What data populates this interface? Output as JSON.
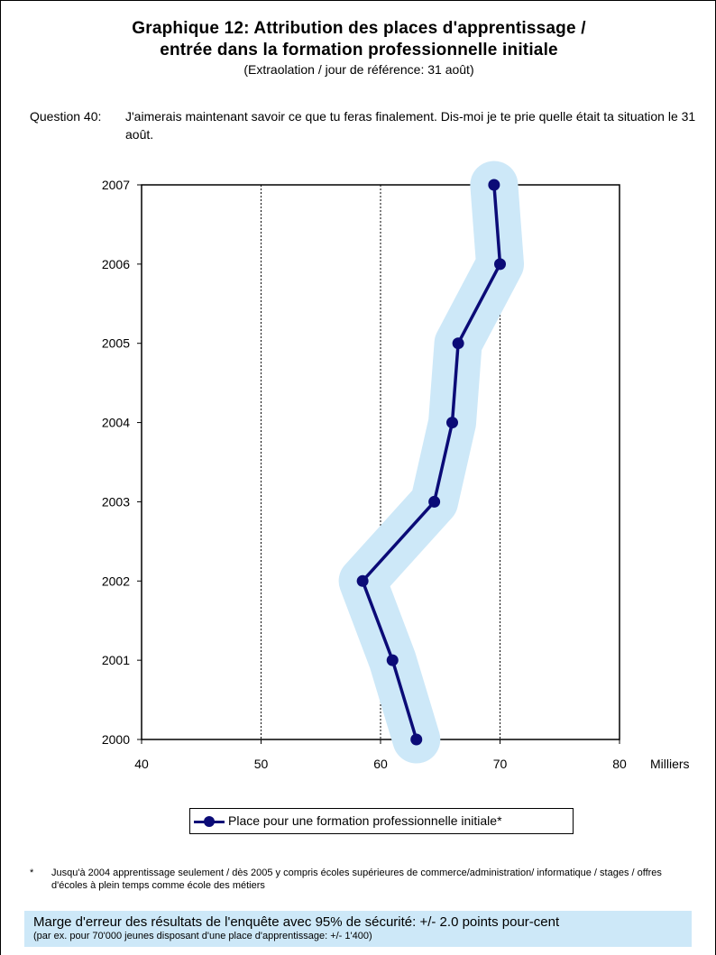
{
  "header": {
    "title_line1": "Graphique 12: Attribution des places d'apprentissage /",
    "title_line2": "entrée dans la formation professionnelle initiale",
    "subtitle": "(Extraolation / jour de référence: 31 août)"
  },
  "question": {
    "label": "Question 40:",
    "text": "J'aimerais maintenant savoir ce que tu feras finalement. Dis-moi je te prie quelle était ta situation le 31 août."
  },
  "chart_data": {
    "type": "line",
    "orientation": "horizontal",
    "title": "",
    "xlabel": "Milliers",
    "ylabel": "",
    "xlim": [
      40,
      80
    ],
    "x_ticks": [
      40,
      50,
      60,
      70,
      80
    ],
    "x_tick_labels": [
      "40",
      "50",
      "60",
      "70",
      "80"
    ],
    "categories": [
      "2007",
      "2006",
      "2005",
      "2004",
      "2003",
      "2002",
      "2001",
      "2000"
    ],
    "series": [
      {
        "name": "Place pour une formation professionnelle initiale*",
        "values": [
          69.5,
          70.0,
          66.5,
          66.0,
          64.5,
          58.5,
          61.0,
          63.0
        ],
        "color": "#0b0b77",
        "band_color": "#cde8f8",
        "error_margin": 2.0
      }
    ],
    "grid": "vertical dotted lines at 50, 60, 70",
    "legend_position": "bottom-center"
  },
  "footnote": {
    "marker": "*",
    "text": "Jusqu'à 2004 apprentissage seulement / dès 2005 y compris écoles supérieures de commerce/administration/ informatique / stages / offres d'écoles à plein temps comme école des métiers"
  },
  "margin_note": {
    "main": "Marge d'erreur des résultats de l'enquête avec 95% de sécurité: +/- 2.0 points pour-cent",
    "sub": "(par ex. pour 70'000 jeunes disposant d'une place d'apprentissage: +/- 1'400)"
  }
}
